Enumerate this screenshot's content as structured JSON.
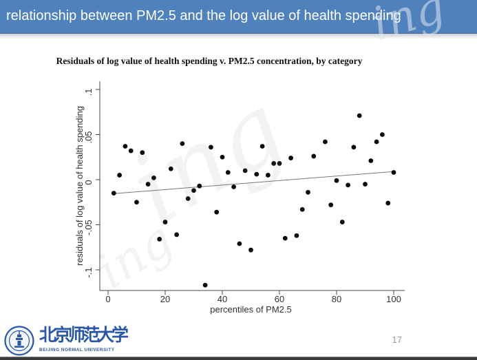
{
  "header": {
    "title": "relationship between PM2.5 and the log value of health spending",
    "bg_color": "#4f81bd",
    "text_color": "#ffffff"
  },
  "slide": {
    "page_number": "17"
  },
  "watermarks": [
    "ing",
    "ing",
    "ing"
  ],
  "logo": {
    "cjk_name": "北京师范大学",
    "latin_name": "BEIJING NORMAL UNIVERSITY",
    "color": "#2b57a7"
  },
  "chart_data": {
    "type": "scatter",
    "title": "Residuals of log value of health spending v. PM2.5 concentration, by category",
    "xlabel": "percentiles of PM2.5",
    "ylabel": "residuals of log value of health spending",
    "xlim": [
      -3,
      103
    ],
    "ylim": [
      -0.125,
      0.112
    ],
    "x_ticks": [
      0,
      20,
      40,
      60,
      80,
      100
    ],
    "y_ticks": [
      0.1,
      0.05,
      0,
      -0.05,
      -0.1
    ],
    "y_tick_labels": [
      ".1",
      ".05",
      "0",
      "-.05",
      "-.1"
    ],
    "grid": false,
    "legend": null,
    "marker_color": "#0a0a0a",
    "points": [
      [
        2,
        -0.015
      ],
      [
        4,
        0.005
      ],
      [
        6,
        0.037
      ],
      [
        8,
        0.032
      ],
      [
        10,
        -0.025
      ],
      [
        12,
        0.03
      ],
      [
        14,
        -0.005
      ],
      [
        16,
        0.002
      ],
      [
        18,
        -0.066
      ],
      [
        20,
        -0.047
      ],
      [
        22,
        0.012
      ],
      [
        24,
        -0.061
      ],
      [
        26,
        0.04
      ],
      [
        28,
        -0.021
      ],
      [
        30,
        -0.012
      ],
      [
        32,
        -0.007
      ],
      [
        34,
        -0.117
      ],
      [
        36,
        0.036
      ],
      [
        38,
        -0.036
      ],
      [
        40,
        0.025
      ],
      [
        42,
        0.008
      ],
      [
        44,
        -0.008
      ],
      [
        46,
        -0.071
      ],
      [
        48,
        0.01
      ],
      [
        50,
        -0.078
      ],
      [
        52,
        0.006
      ],
      [
        54,
        0.037
      ],
      [
        56,
        0.005
      ],
      [
        58,
        0.018
      ],
      [
        60,
        0.018
      ],
      [
        62,
        -0.065
      ],
      [
        64,
        0.024
      ],
      [
        66,
        -0.062
      ],
      [
        68,
        -0.033
      ],
      [
        70,
        -0.014
      ],
      [
        72,
        0.026
      ],
      [
        76,
        0.042
      ],
      [
        78,
        -0.028
      ],
      [
        80,
        -0.001
      ],
      [
        82,
        -0.047
      ],
      [
        84,
        -0.006
      ],
      [
        86,
        0.036
      ],
      [
        88,
        0.071
      ],
      [
        90,
        -0.005
      ],
      [
        92,
        0.021
      ],
      [
        94,
        0.042
      ],
      [
        96,
        0.05
      ],
      [
        98,
        -0.026
      ],
      [
        100,
        0.008
      ]
    ],
    "fit_line": {
      "x": [
        2,
        100
      ],
      "y": [
        -0.0155,
        0.009
      ],
      "color": "#777777"
    }
  }
}
